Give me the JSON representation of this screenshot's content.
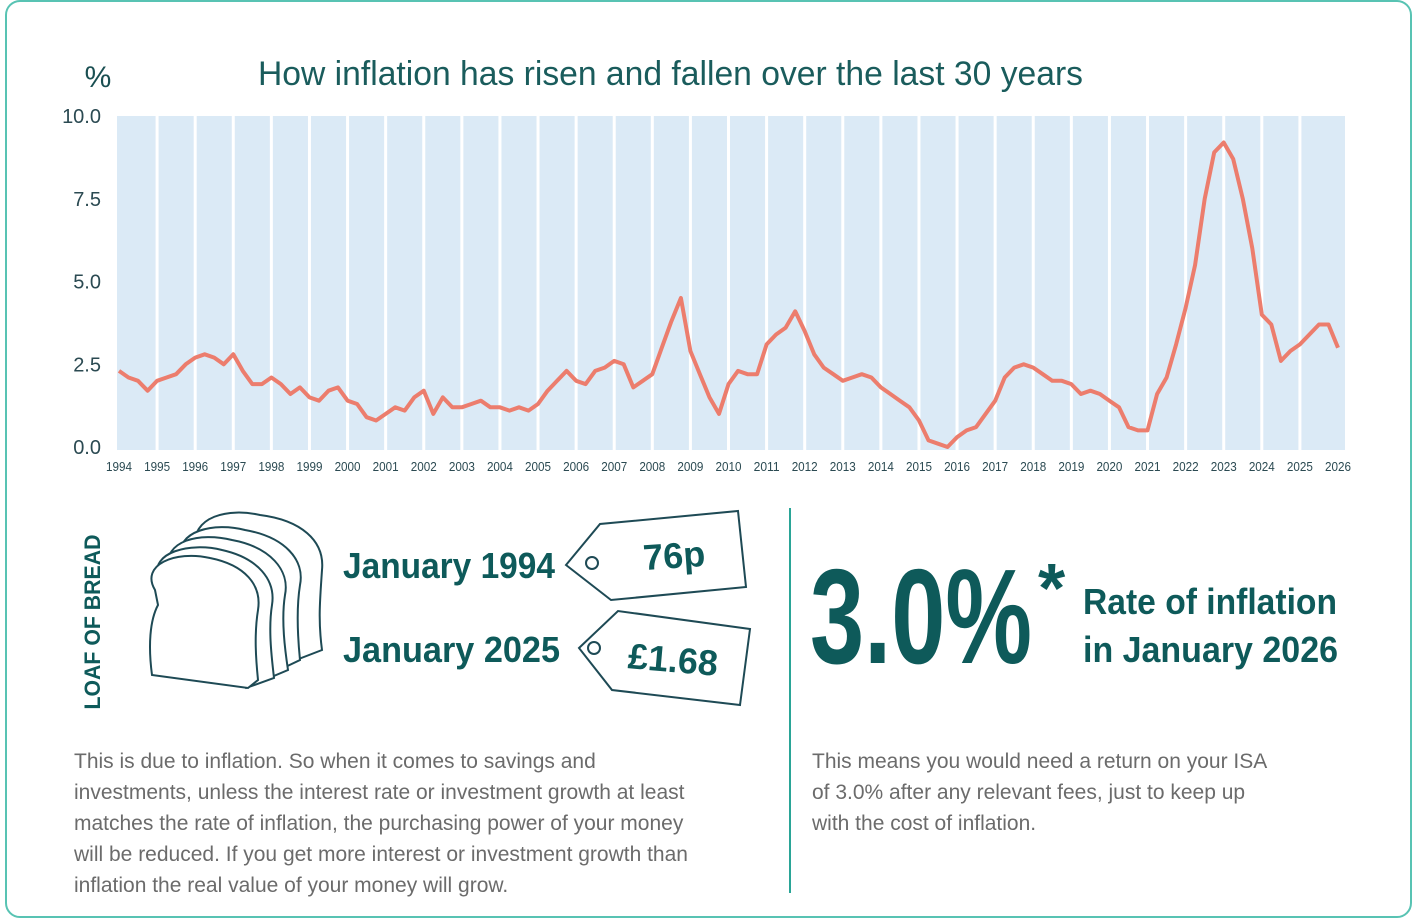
{
  "chart_data": {
    "type": "line",
    "title": "How inflation has risen and fallen over the last 30 years",
    "y_label": "%",
    "x": [
      1994,
      1994.25,
      1994.5,
      1994.75,
      1995,
      1995.25,
      1995.5,
      1995.75,
      1996,
      1996.25,
      1996.5,
      1996.75,
      1997,
      1997.25,
      1997.5,
      1997.75,
      1998,
      1998.25,
      1998.5,
      1998.75,
      1999,
      1999.25,
      1999.5,
      1999.75,
      2000,
      2000.25,
      2000.5,
      2000.75,
      2001,
      2001.25,
      2001.5,
      2001.75,
      2002,
      2002.25,
      2002.5,
      2002.75,
      2003,
      2003.25,
      2003.5,
      2003.75,
      2004,
      2004.25,
      2004.5,
      2004.75,
      2005,
      2005.25,
      2005.5,
      2005.75,
      2006,
      2006.25,
      2006.5,
      2006.75,
      2007,
      2007.25,
      2007.5,
      2007.75,
      2008,
      2008.25,
      2008.5,
      2008.75,
      2009,
      2009.25,
      2009.5,
      2009.75,
      2010,
      2010.25,
      2010.5,
      2010.75,
      2011,
      2011.25,
      2011.5,
      2011.75,
      2012,
      2012.25,
      2012.5,
      2012.75,
      2013,
      2013.25,
      2013.5,
      2013.75,
      2014,
      2014.25,
      2014.5,
      2014.75,
      2015,
      2015.25,
      2015.5,
      2015.75,
      2016,
      2016.25,
      2016.5,
      2016.75,
      2017,
      2017.25,
      2017.5,
      2017.75,
      2018,
      2018.25,
      2018.5,
      2018.75,
      2019,
      2019.25,
      2019.5,
      2019.75,
      2020,
      2020.25,
      2020.5,
      2020.75,
      2021,
      2021.25,
      2021.5,
      2021.75,
      2022,
      2022.25,
      2022.5,
      2022.75,
      2023,
      2023.25,
      2023.5,
      2023.75,
      2024,
      2024.25,
      2024.5,
      2024.75,
      2025,
      2025.25,
      2025.5,
      2025.75,
      2026
    ],
    "values": [
      2.3,
      2.1,
      2.0,
      1.7,
      2.0,
      2.1,
      2.2,
      2.5,
      2.7,
      2.8,
      2.7,
      2.5,
      2.8,
      2.3,
      1.9,
      1.9,
      2.1,
      1.9,
      1.6,
      1.8,
      1.5,
      1.4,
      1.7,
      1.8,
      1.4,
      1.3,
      0.9,
      0.8,
      1.0,
      1.2,
      1.1,
      1.5,
      1.7,
      1.0,
      1.5,
      1.2,
      1.2,
      1.3,
      1.4,
      1.2,
      1.2,
      1.1,
      1.2,
      1.1,
      1.3,
      1.7,
      2.0,
      2.3,
      2.0,
      1.9,
      2.3,
      2.4,
      2.6,
      2.5,
      1.8,
      2.0,
      2.2,
      3.0,
      3.8,
      4.5,
      2.9,
      2.2,
      1.5,
      1.0,
      1.9,
      2.3,
      2.2,
      2.2,
      3.1,
      3.4,
      3.6,
      4.1,
      3.5,
      2.8,
      2.4,
      2.2,
      2.0,
      2.1,
      2.2,
      2.1,
      1.8,
      1.6,
      1.4,
      1.2,
      0.8,
      0.2,
      0.1,
      0.0,
      0.3,
      0.5,
      0.6,
      1.0,
      1.4,
      2.1,
      2.4,
      2.5,
      2.4,
      2.2,
      2.0,
      2.0,
      1.9,
      1.6,
      1.7,
      1.6,
      1.4,
      1.2,
      0.6,
      0.5,
      0.5,
      1.6,
      2.1,
      3.1,
      4.2,
      5.5,
      7.5,
      8.9,
      9.2,
      8.7,
      7.5,
      6.0,
      4.0,
      3.7,
      2.6,
      2.9,
      3.1,
      3.4,
      3.7,
      3.7,
      3.0
    ],
    "color": "#ec7d6d",
    "xlim": [
      1994,
      2026
    ],
    "ylim": [
      0,
      10
    ],
    "xticks": [
      1994,
      1995,
      1996,
      1997,
      1998,
      1999,
      2000,
      2001,
      2002,
      2003,
      2004,
      2005,
      2006,
      2007,
      2008,
      2009,
      2010,
      2011,
      2012,
      2013,
      2014,
      2015,
      2016,
      2017,
      2018,
      2019,
      2020,
      2021,
      2022,
      2023,
      2024,
      2025,
      2026
    ],
    "yticks": [
      {
        "value": 0,
        "label": "0.0"
      },
      2.5,
      {
        "value": 5,
        "label": "5.0"
      },
      7.5,
      {
        "value": 10,
        "label": "10.0"
      }
    ],
    "grid": true
  },
  "bread": {
    "label": "LOAF OF BREAD",
    "prices": [
      {
        "date": "January 1994",
        "price": "76p"
      },
      {
        "date": "January 2025",
        "price": "£1.68"
      }
    ],
    "text": [
      "This is due to inflation. So when it comes to savings and",
      "investments, unless the interest rate or investment growth at least",
      "matches the rate of inflation, the purchasing power of your money",
      "will be reduced. If you get more interest or investment growth than",
      "inflation the real value of your money will grow."
    ]
  },
  "inflation": {
    "rate": "3.0%",
    "asterisk": "*",
    "caption": [
      "Rate of inflation",
      "in January 2026"
    ],
    "text": [
      "This means you would need a return on your ISA",
      "of 3.0% after any relevant fees, just to keep up",
      "with the cost of inflation."
    ]
  }
}
